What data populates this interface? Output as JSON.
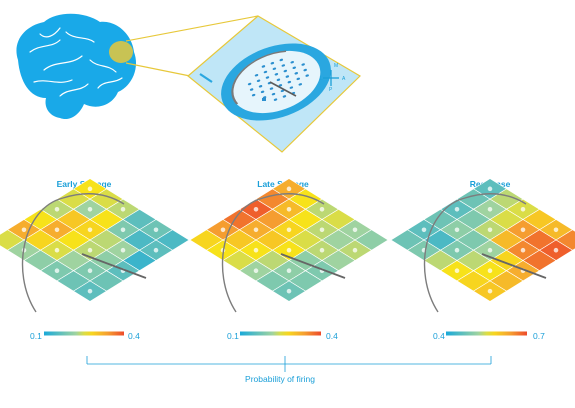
{
  "colors": {
    "accent": "#1a9fd8",
    "brain": "#19a9e8",
    "highlight": "#e7c83a",
    "chamber": "#bfe6f7",
    "well": "#2aa7e0",
    "scale_low": "#1aa9d9",
    "scale_mid": "#f7e21a",
    "scale_high": "#ed4a2a"
  },
  "icons": {
    "brain": "brain-icon",
    "recording_array": "recording-array-icon",
    "compass": "compass-icon"
  },
  "compass_letters": [
    "M",
    "A",
    "L",
    "P"
  ],
  "panels": [
    {
      "title": "Early Storage",
      "scale_min": "0.1",
      "scale_max": "0.4",
      "grid": [
        [
          0.55,
          0.5,
          0.45,
          0.2,
          0.25,
          0.15
        ],
        [
          0.5,
          0.4,
          0.55,
          0.3,
          0.15,
          0.2
        ],
        [
          0.45,
          0.65,
          0.6,
          0.45,
          0.4,
          0.1
        ],
        [
          0.55,
          0.75,
          0.55,
          0.45,
          0.35,
          0.2
        ],
        [
          0.75,
          0.6,
          0.5,
          0.4,
          0.3,
          0.25
        ],
        [
          0.5,
          0.4,
          0.35,
          0.3,
          0.25,
          0.2
        ]
      ]
    },
    {
      "title": "Late Storage",
      "scale_min": "0.1",
      "scale_max": "0.4",
      "grid": [
        [
          0.75,
          0.55,
          0.45,
          0.5,
          0.4,
          0.35
        ],
        [
          0.85,
          0.7,
          0.55,
          0.45,
          0.4,
          0.45
        ],
        [
          0.95,
          0.8,
          0.6,
          0.5,
          0.45,
          0.4
        ],
        [
          0.9,
          0.75,
          0.65,
          0.55,
          0.35,
          0.3
        ],
        [
          0.8,
          0.65,
          0.55,
          0.45,
          0.35,
          0.3
        ],
        [
          0.6,
          0.55,
          0.5,
          0.4,
          0.3,
          0.25
        ]
      ]
    },
    {
      "title": "Response",
      "scale_min": "0.4",
      "scale_max": "0.7",
      "grid": [
        [
          0.2,
          0.45,
          0.5,
          0.65,
          0.7,
          0.85
        ],
        [
          0.25,
          0.4,
          0.5,
          0.8,
          0.9,
          0.95
        ],
        [
          0.2,
          0.3,
          0.45,
          0.7,
          0.85,
          0.9
        ],
        [
          0.25,
          0.35,
          0.3,
          0.4,
          0.6,
          0.75
        ],
        [
          0.2,
          0.15,
          0.3,
          0.45,
          0.55,
          0.7
        ],
        [
          0.25,
          0.3,
          0.45,
          0.55,
          0.6,
          0.65
        ]
      ]
    }
  ],
  "axis_title": "Probability of firing"
}
